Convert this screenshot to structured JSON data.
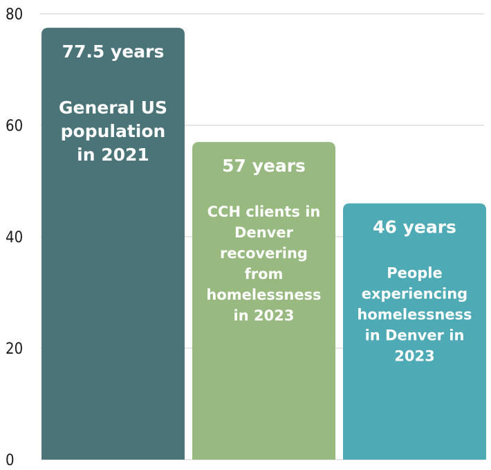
{
  "chart_data": {
    "type": "bar",
    "title": "",
    "xlabel": "",
    "ylabel": "",
    "ylim": [
      0,
      80
    ],
    "yticks": [
      0,
      20,
      40,
      60,
      80
    ],
    "grid": true,
    "bars": [
      {
        "value": 77.5,
        "value_label": "77.5 years",
        "label_lines": [
          "General US",
          "population",
          "in 2021"
        ],
        "color": "#4a7478"
      },
      {
        "value": 57,
        "value_label": "57 years",
        "label_lines": [
          "CCH clients in",
          "Denver",
          "recovering",
          "from",
          "homelessness",
          "in 2023"
        ],
        "color": "#98b980"
      },
      {
        "value": 46,
        "value_label": "46 years",
        "label_lines": [
          "People",
          "experiencing",
          "homelessness",
          "in Denver in",
          "2023"
        ],
        "color": "#4eaab4"
      }
    ]
  }
}
